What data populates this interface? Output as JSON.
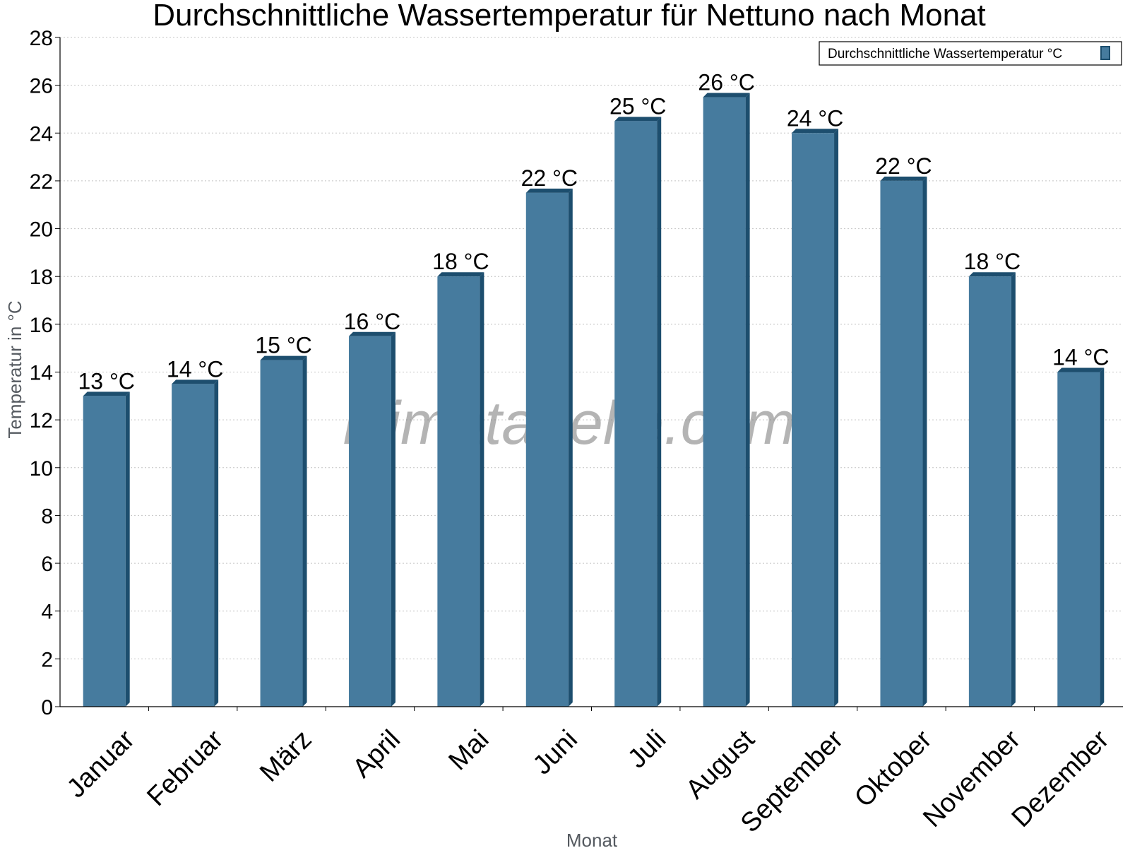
{
  "chart_data": {
    "type": "bar",
    "title": "Durchschnittliche Wassertemperatur für Nettuno nach Monat",
    "xlabel": "Monat",
    "ylabel": "Temperatur in °C",
    "ylim": [
      0,
      28
    ],
    "yticks": [
      0,
      2,
      4,
      6,
      8,
      10,
      12,
      14,
      16,
      18,
      20,
      22,
      24,
      26,
      28
    ],
    "grid": true,
    "legend_position": "top-right",
    "categories": [
      "Januar",
      "Februar",
      "März",
      "April",
      "Mai",
      "Juni",
      "Juli",
      "August",
      "September",
      "Oktober",
      "November",
      "Dezember"
    ],
    "series": [
      {
        "name": "Durchschnittliche Wassertemperatur °C",
        "values": [
          13,
          13.5,
          14.5,
          15.5,
          18,
          21.5,
          24.5,
          25.5,
          24,
          22,
          18,
          14
        ],
        "labels": [
          "13 °C",
          "14 °C",
          "15 °C",
          "16 °C",
          "18 °C",
          "22 °C",
          "25 °C",
          "26 °C",
          "24 °C",
          "22 °C",
          "18 °C",
          "14 °C"
        ],
        "color": "#467b9e",
        "edge_color": "#1d4e6e"
      }
    ]
  },
  "watermark": "klimatabelle.com"
}
